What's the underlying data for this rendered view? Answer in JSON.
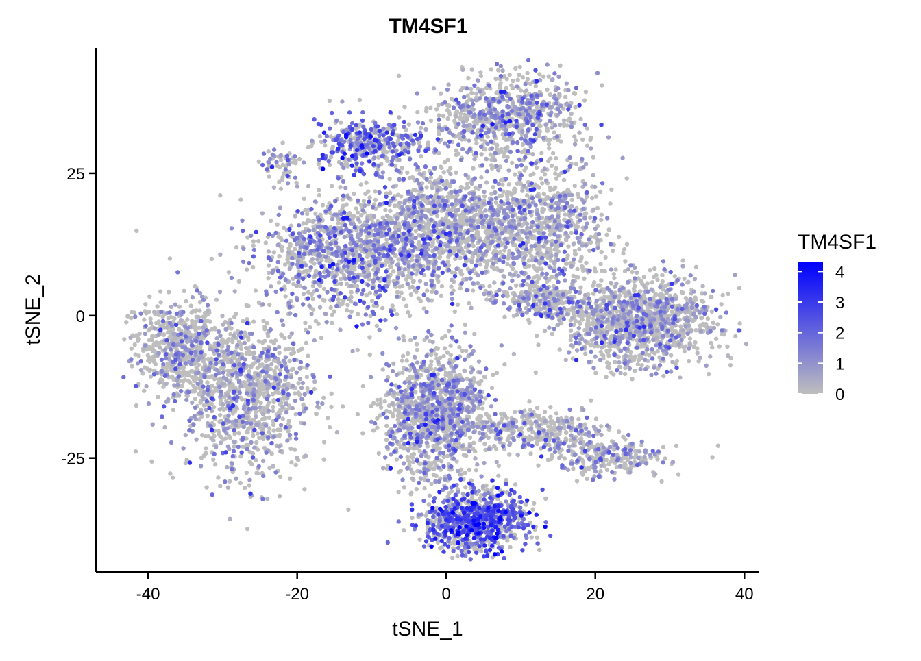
{
  "chart_data": {
    "type": "scatter",
    "title": "TM4SF1",
    "xlabel": "tSNE_1",
    "ylabel": "tSNE_2",
    "xlim": [
      -47,
      42
    ],
    "ylim": [
      -45,
      47
    ],
    "x_ticks": [
      -40,
      -20,
      0,
      20,
      40
    ],
    "y_ticks": [
      25,
      0,
      -25
    ],
    "x_tick_labels": [
      "-40",
      "-20",
      "0",
      "20",
      "40"
    ],
    "y_tick_labels": [
      "25",
      "0",
      "-25"
    ],
    "grid": false,
    "legend": {
      "title": "TM4SF1",
      "placement": "right",
      "range": [
        0,
        4.3
      ],
      "ticks": [
        4,
        3,
        2,
        1,
        0
      ],
      "tick_labels": [
        "4",
        "3",
        "2",
        "1",
        "0"
      ],
      "color_low": "#bebebe",
      "color_high": "#0000ff"
    },
    "clusters": [
      {
        "cx": -36.5,
        "cy": -5.5,
        "sx": 3.3,
        "sy": 4.8,
        "n": 500,
        "expr": 0.25
      },
      {
        "cx": -27.0,
        "cy": -13.0,
        "sx": 5.2,
        "sy": 8.5,
        "n": 1100,
        "expr": 0.35
      },
      {
        "cx": -13.0,
        "cy": 11.0,
        "sx": 7.0,
        "sy": 6.0,
        "n": 1100,
        "expr": 1.05
      },
      {
        "cx": -22.0,
        "cy": 26.5,
        "sx": 1.6,
        "sy": 2.2,
        "n": 60,
        "expr": 0.9
      },
      {
        "cx": -10.0,
        "cy": 30.0,
        "sx": 4.6,
        "sy": 2.8,
        "n": 380,
        "expr": 1.8
      },
      {
        "cx": 8.0,
        "cy": 35.0,
        "sx": 5.8,
        "sy": 4.2,
        "n": 700,
        "expr": 0.85
      },
      {
        "cx": 0.0,
        "cy": 16.0,
        "sx": 5.8,
        "sy": 6.5,
        "n": 900,
        "expr": 0.6
      },
      {
        "cx": 12.0,
        "cy": 15.0,
        "sx": 5.5,
        "sy": 7.0,
        "n": 900,
        "expr": 0.55
      },
      {
        "cx": 26.0,
        "cy": -1.0,
        "sx": 6.0,
        "sy": 4.5,
        "n": 1200,
        "expr": 0.45
      },
      {
        "cx": 13.0,
        "cy": 2.5,
        "sx": 3.5,
        "sy": 1.8,
        "n": 200,
        "expr": 0.6
      },
      {
        "cx": -1.5,
        "cy": -17.0,
        "sx": 4.2,
        "sy": 6.5,
        "n": 1200,
        "expr": 0.7
      },
      {
        "cx": 12.0,
        "cy": -20.0,
        "sx": 5.5,
        "sy": 2.2,
        "n": 350,
        "expr": 0.4
      },
      {
        "cx": 22.0,
        "cy": -25.0,
        "sx": 4.5,
        "sy": 2.0,
        "n": 250,
        "expr": 0.45
      },
      {
        "cx": 4.0,
        "cy": -36.0,
        "sx": 4.2,
        "sy": 3.0,
        "n": 900,
        "expr": 2.3
      }
    ]
  }
}
